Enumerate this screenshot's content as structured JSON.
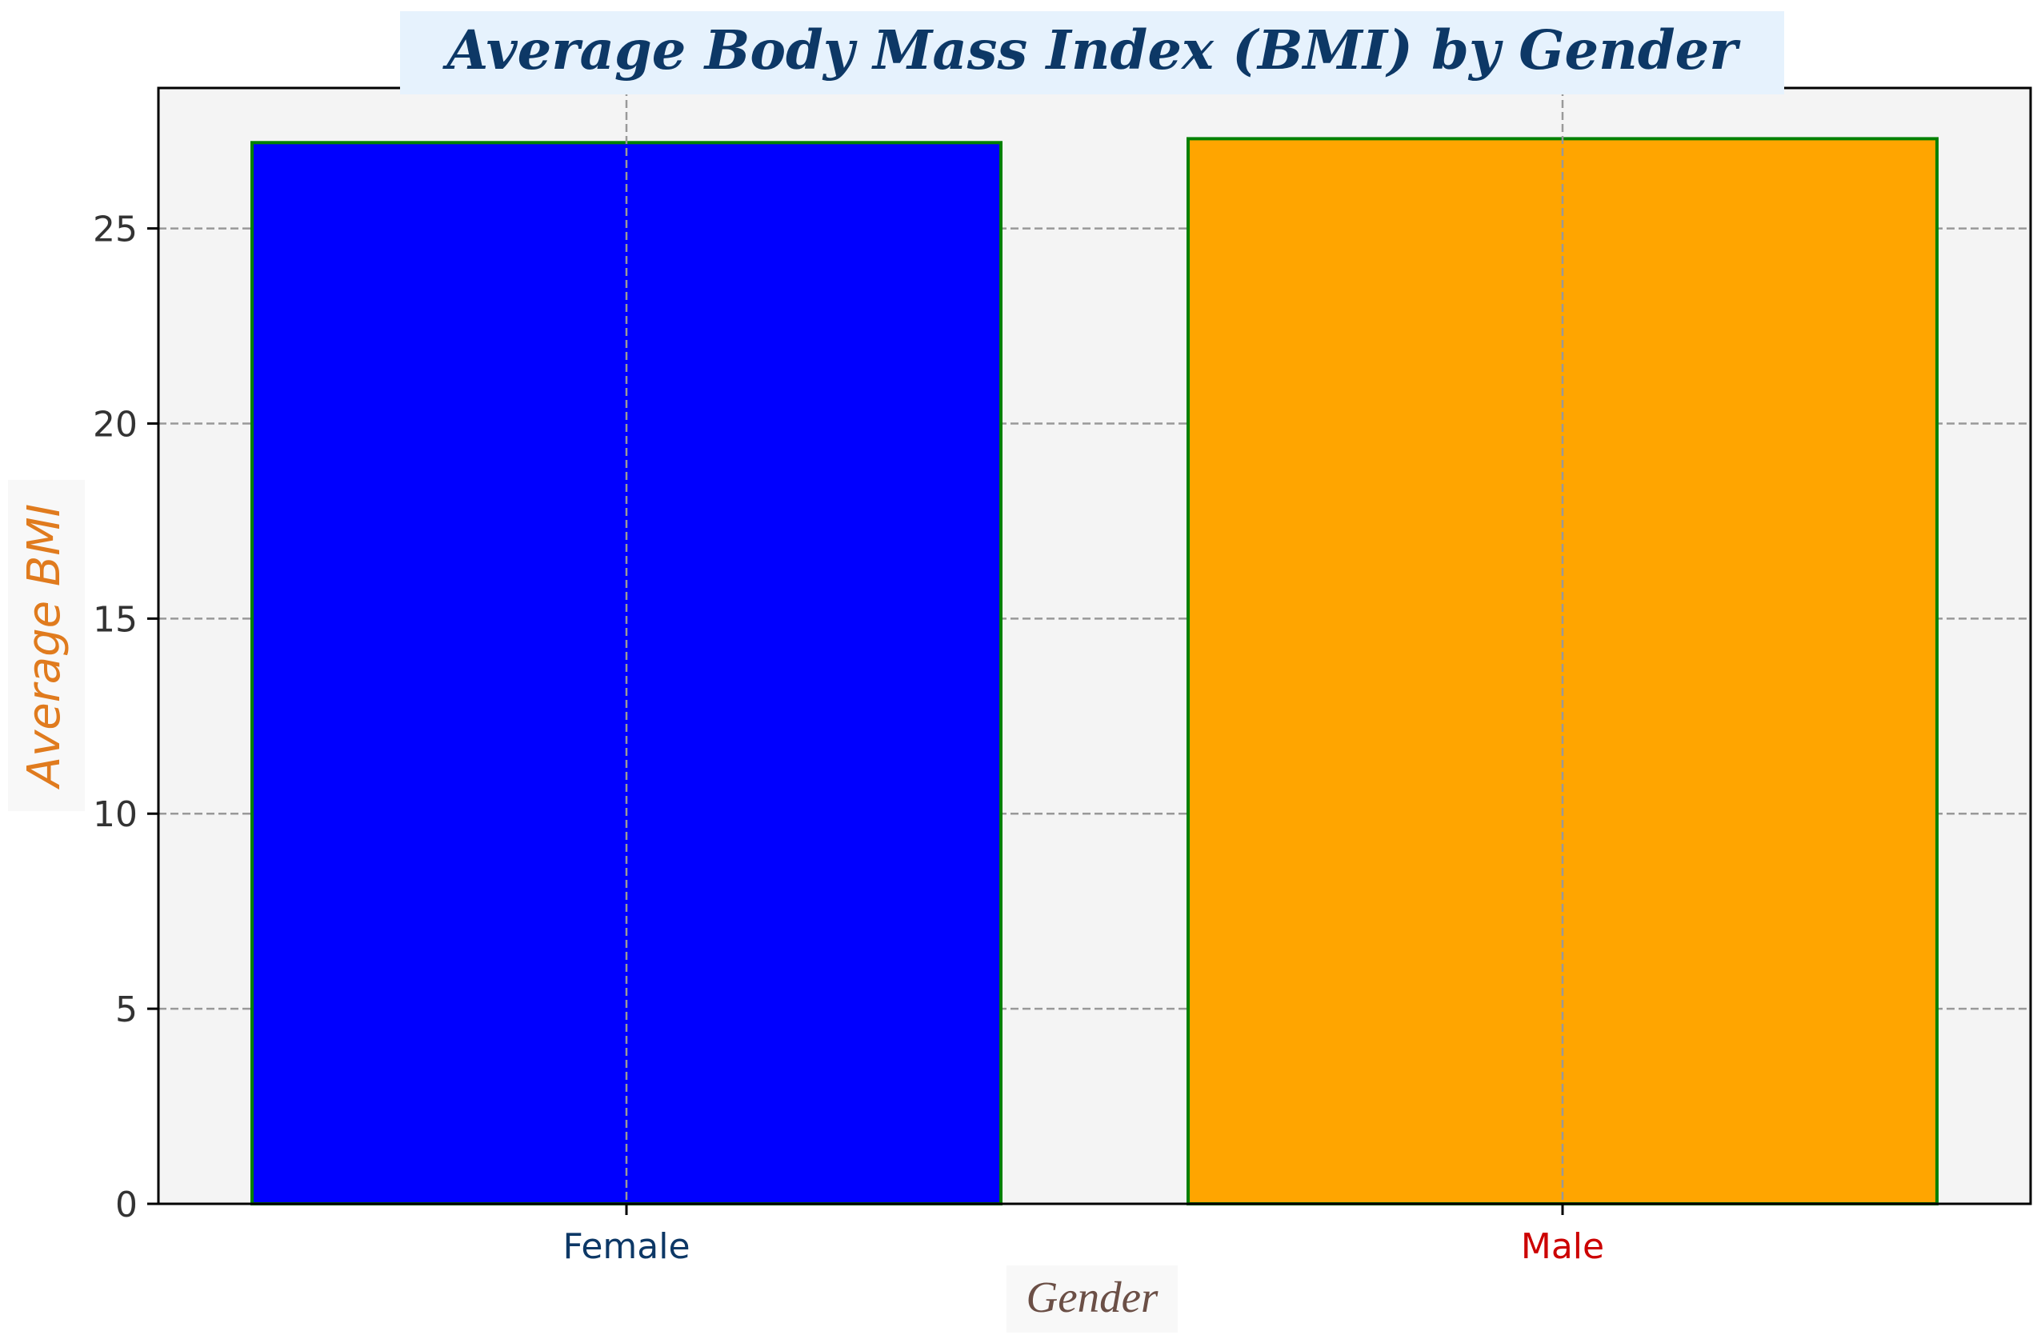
{
  "chart_data": {
    "type": "bar",
    "title": "Average Body Mass Index (BMI) by Gender",
    "xlabel": "Gender",
    "ylabel": "Average BMI",
    "categories": [
      "Female",
      "Male"
    ],
    "values": [
      27.2,
      27.3
    ],
    "ylim": [
      0,
      28.6
    ],
    "yticks": [
      "0",
      "5",
      "10",
      "15",
      "20",
      "25"
    ],
    "grid": true,
    "colors": {
      "bars": [
        "#0000ff",
        "#ffa500"
      ],
      "bar_edge": "#008000",
      "plot_background": "#f4f4f4",
      "grid": "#999999",
      "title": "#0d3866",
      "title_background": "#e6f2fd",
      "ylabel": "#e07b1e",
      "ylabel_background": "#f8f8f8",
      "xlabel": "#6b4f46",
      "xlabel_background": "#f8f8f8",
      "category_labels": [
        "#0d3866",
        "#cc0000"
      ]
    }
  }
}
